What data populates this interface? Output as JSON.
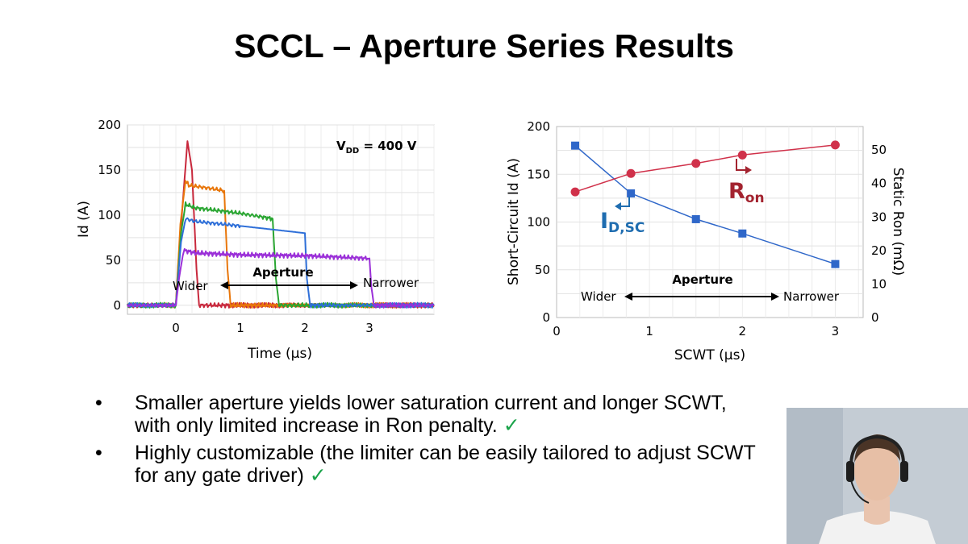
{
  "slide": {
    "title": "SCCL – Aperture Series Results",
    "bullets": [
      {
        "text": "Smaller aperture yields lower saturation current and longer SCWT, with only limited increase in Ron penalty.",
        "check": "✓"
      },
      {
        "text": "Highly customizable (the limiter can be easily tailored to adjust SCWT for any gate driver)",
        "check": "✓"
      }
    ],
    "bullet_symbol": "•"
  },
  "chart_data": [
    {
      "type": "line",
      "xlabel": "Time (μs)",
      "ylabel": "Id (A)",
      "xlim": [
        -0.75,
        4.0
      ],
      "ylim": [
        -10,
        200
      ],
      "xticks": [
        0,
        1,
        2,
        3
      ],
      "yticks": [
        0,
        50,
        100,
        150,
        200
      ],
      "grid": true,
      "annotation_main": "V",
      "annotation_sub": "DD",
      "annotation_rest": " = 400 V",
      "arrow_label": "Aperture",
      "arrow_left": "Wider",
      "arrow_right": "Narrower",
      "series": [
        {
          "color": "#c8283c",
          "points": [
            [
              -0.75,
              0
            ],
            [
              0,
              0
            ],
            [
              0.05,
              60
            ],
            [
              0.18,
              182
            ],
            [
              0.25,
              150
            ],
            [
              0.32,
              40
            ],
            [
              0.36,
              0
            ],
            [
              4.0,
              0
            ]
          ]
        },
        {
          "color": "#e8760a",
          "points": [
            [
              -0.75,
              0
            ],
            [
              0,
              0
            ],
            [
              0.07,
              90
            ],
            [
              0.15,
              138
            ],
            [
              0.2,
              133
            ],
            [
              0.5,
              130
            ],
            [
              0.75,
              127
            ],
            [
              0.8,
              40
            ],
            [
              0.85,
              0
            ],
            [
              4.0,
              0
            ]
          ]
        },
        {
          "color": "#2aa632",
          "points": [
            [
              -0.75,
              0
            ],
            [
              0,
              0
            ],
            [
              0.08,
              80
            ],
            [
              0.15,
              112
            ],
            [
              0.3,
              108
            ],
            [
              1.0,
              102
            ],
            [
              1.5,
              96
            ],
            [
              1.55,
              30
            ],
            [
              1.6,
              0
            ],
            [
              4.0,
              0
            ]
          ]
        },
        {
          "color": "#2e6fd8",
          "points": [
            [
              -0.75,
              0
            ],
            [
              0,
              0
            ],
            [
              0.08,
              70
            ],
            [
              0.15,
              96
            ],
            [
              0.3,
              93
            ],
            [
              1.0,
              88
            ],
            [
              2.0,
              80
            ],
            [
              2.03,
              30
            ],
            [
              2.08,
              0
            ],
            [
              4.0,
              0
            ]
          ]
        },
        {
          "color": "#9b30d8",
          "points": [
            [
              -0.75,
              0
            ],
            [
              0,
              0
            ],
            [
              0.05,
              30
            ],
            [
              0.12,
              61
            ],
            [
              0.3,
              58
            ],
            [
              1.0,
              56
            ],
            [
              2.0,
              55
            ],
            [
              3.0,
              52
            ],
            [
              3.03,
              20
            ],
            [
              3.07,
              0
            ],
            [
              4.0,
              0
            ]
          ]
        }
      ]
    },
    {
      "type": "line",
      "xlabel": "SCWT (μs)",
      "ylabel": "Short-Circuit Id (A)",
      "y2label": "Static Ron (mΩ)",
      "xlim": [
        0,
        3.3
      ],
      "ylim": [
        0,
        200
      ],
      "y2lim": [
        0,
        57
      ],
      "xticks": [
        0,
        1,
        2,
        3
      ],
      "yticks": [
        0,
        50,
        100,
        150,
        200
      ],
      "y2ticks": [
        0,
        10,
        20,
        30,
        40,
        50
      ],
      "grid": true,
      "arrow_label": "Aperture",
      "arrow_left": "Wider",
      "arrow_right": "Narrower",
      "series": [
        {
          "name": "ID,SC",
          "label_main": "I",
          "label_sub": "D,SC",
          "axis": "left",
          "color": "#2f67c9",
          "marker": "square",
          "x": [
            0.2,
            0.8,
            1.5,
            2.0,
            3.0
          ],
          "y": [
            180,
            130,
            103,
            88,
            56
          ]
        },
        {
          "name": "Ron",
          "label_main": "R",
          "label_sub": "on",
          "axis": "right",
          "color": "#d0314a",
          "marker": "circle",
          "x": [
            0.2,
            0.8,
            1.5,
            2.0,
            3.0
          ],
          "y": [
            37.5,
            43,
            46,
            48.5,
            51.5
          ]
        }
      ]
    }
  ]
}
